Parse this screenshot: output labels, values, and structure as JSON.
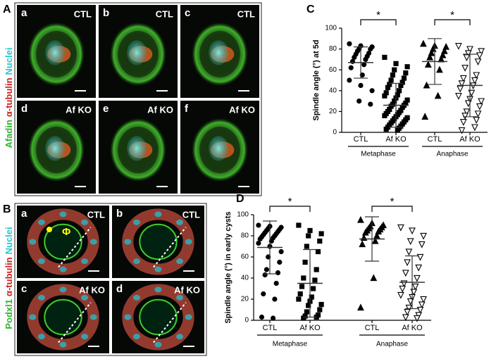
{
  "figure": {
    "panels": [
      {
        "label": "A",
        "stain": [
          "Afadin",
          "α-tubulin",
          "Nuclei"
        ],
        "images": [
          {
            "letter": "a",
            "condition": "CTL"
          },
          {
            "letter": "b",
            "condition": "CTL"
          },
          {
            "letter": "c",
            "condition": "CTL"
          },
          {
            "letter": "d",
            "condition": "Af KO"
          },
          {
            "letter": "e",
            "condition": "Af KO"
          },
          {
            "letter": "f",
            "condition": "Af KO"
          }
        ]
      },
      {
        "label": "B",
        "stain": [
          "Podxl1",
          "α-tubulin",
          "Nuclei"
        ],
        "annotation": "Φ",
        "images": [
          {
            "letter": "a",
            "condition": "CTL"
          },
          {
            "letter": "b",
            "condition": "CTL"
          },
          {
            "letter": "c",
            "condition": "Af KO"
          },
          {
            "letter": "d",
            "condition": "Af KO"
          }
        ]
      }
    ]
  },
  "chart_data": [
    {
      "type": "dot",
      "panel": "C",
      "y_label": "Spindle angle (°) at 5d",
      "ylim": [
        0,
        100
      ],
      "yticks": [
        0,
        20,
        40,
        60,
        80,
        100
      ],
      "groups": [
        {
          "label": "Metaphase",
          "significance": "*",
          "items": [
            {
              "category": "CTL",
              "marker": "circle",
              "values": [
                85,
                83,
                82,
                80,
                80,
                78,
                76,
                75,
                73,
                72,
                70,
                68,
                65,
                62,
                55,
                50,
                45,
                40,
                30,
                27
              ],
              "mean": 67,
              "error": 15
            },
            {
              "category": "Af KO",
              "marker": "square",
              "values": [
                72,
                66,
                63,
                60,
                57,
                55,
                52,
                50,
                48,
                46,
                45,
                43,
                40,
                38,
                36,
                35,
                33,
                31,
                30,
                28,
                27,
                26,
                25,
                24,
                22,
                21,
                20,
                19,
                18,
                17,
                16,
                15,
                14,
                13,
                12,
                11,
                10,
                9,
                8,
                7,
                6,
                5,
                4,
                3,
                2
              ],
              "mean": 26,
              "error": 21
            }
          ]
        },
        {
          "label": "Anaphase",
          "significance": "*",
          "items": [
            {
              "category": "CTL",
              "marker": "triangle-up",
              "values": [
                85,
                83,
                82,
                80,
                78,
                76,
                74,
                72,
                70,
                65,
                60,
                45,
                35,
                15
              ],
              "mean": 68,
              "error": 22
            },
            {
              "category": "Af KO",
              "marker": "triangle-down",
              "values": [
                83,
                80,
                78,
                76,
                74,
                72,
                68,
                62,
                55,
                52,
                50,
                47,
                45,
                42,
                38,
                35,
                32,
                30,
                28,
                25,
                20,
                18,
                16,
                12,
                10,
                5,
                2
              ],
              "mean": 45,
              "error": 30
            }
          ]
        }
      ]
    },
    {
      "type": "dot",
      "panel": "D",
      "y_label": "Spindle angle (°) in early cysts",
      "ylim": [
        0,
        100
      ],
      "yticks": [
        0,
        20,
        40,
        60,
        80,
        100
      ],
      "groups": [
        {
          "label": "Metaphase",
          "significance": "*",
          "items": [
            {
              "category": "CTL",
              "marker": "circle",
              "values": [
                90,
                89,
                88,
                87,
                86,
                85,
                84,
                83,
                82,
                81,
                80,
                79,
                78,
                77,
                75,
                73,
                70,
                65,
                60,
                55,
                48,
                45,
                43,
                35,
                25,
                20,
                3,
                2
              ],
              "mean": 69,
              "error": 25
            },
            {
              "category": "Af KO",
              "marker": "square",
              "values": [
                90,
                85,
                82,
                80,
                75,
                70,
                65,
                55,
                48,
                40,
                38,
                32,
                30,
                25,
                22,
                20,
                18,
                15,
                14,
                10,
                8,
                5,
                4,
                3,
                2
              ],
              "mean": 35,
              "error": 32
            }
          ]
        },
        {
          "label": "Anaphase",
          "significance": "*",
          "items": [
            {
              "category": "CTL",
              "marker": "triangle-up",
              "values": [
                95,
                92,
                90,
                89,
                88,
                87,
                86,
                85,
                84,
                83,
                80,
                78,
                75,
                72,
                40,
                12
              ],
              "mean": 77,
              "error": 21
            },
            {
              "category": "Af KO",
              "marker": "triangle-down",
              "values": [
                88,
                85,
                80,
                75,
                72,
                65,
                60,
                55,
                50,
                45,
                40,
                35,
                32,
                30,
                27,
                24,
                22,
                20,
                18,
                15,
                12,
                10,
                8,
                5,
                3,
                2
              ],
              "mean": 36,
              "error": 25
            }
          ]
        }
      ]
    }
  ]
}
